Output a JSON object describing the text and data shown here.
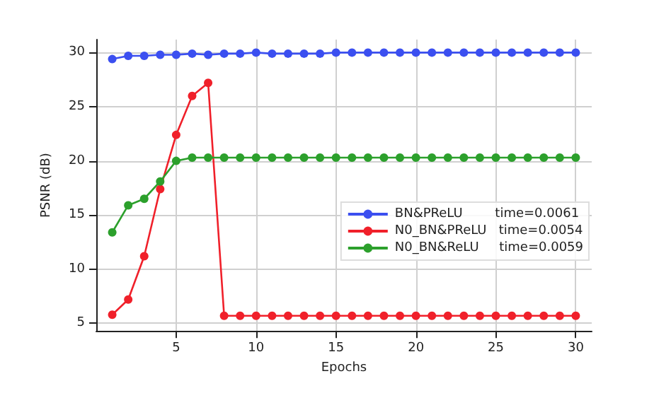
{
  "chart_data": {
    "type": "line",
    "xlabel": "Epochs",
    "ylabel": "PSNR (dB)",
    "x": [
      1,
      2,
      3,
      4,
      5,
      6,
      7,
      8,
      9,
      10,
      11,
      12,
      13,
      14,
      15,
      16,
      17,
      18,
      19,
      20,
      21,
      22,
      23,
      24,
      25,
      26,
      27,
      28,
      29,
      30
    ],
    "series": [
      {
        "name": "BN&PReLU        time=0.0061",
        "color": "#3b4ff0",
        "values": [
          29.4,
          29.7,
          29.7,
          29.8,
          29.8,
          29.9,
          29.8,
          29.9,
          29.9,
          30,
          29.9,
          29.9,
          29.9,
          29.9,
          30,
          30,
          30,
          30,
          30,
          30,
          30,
          30,
          30,
          30,
          30,
          30,
          30,
          30,
          30,
          30
        ]
      },
      {
        "name": "N0_BN&PReLU   time=0.0054",
        "color": "#f0202a",
        "values": [
          5.8,
          7.2,
          11.2,
          17.4,
          22.4,
          26.0,
          27.2,
          5.7,
          5.7,
          5.7,
          5.7,
          5.7,
          5.7,
          5.7,
          5.7,
          5.7,
          5.7,
          5.7,
          5.7,
          5.7,
          5.7,
          5.7,
          5.7,
          5.7,
          5.7,
          5.7,
          5.7,
          5.7,
          5.7,
          5.7
        ]
      },
      {
        "name": "N0_BN&ReLU     time=0.0059",
        "color": "#2ca02c",
        "values": [
          13.4,
          15.9,
          16.5,
          18.1,
          20,
          20.3,
          20.3,
          20.3,
          20.3,
          20.3,
          20.3,
          20.3,
          20.3,
          20.3,
          20.3,
          20.3,
          20.3,
          20.3,
          20.3,
          20.3,
          20.3,
          20.3,
          20.3,
          20.3,
          20.3,
          20.3,
          20.3,
          20.3,
          20.3,
          20.3
        ]
      }
    ],
    "xlim": [
      0,
      31
    ],
    "ylim": [
      4.3,
      31.2
    ],
    "xticks": [
      5,
      10,
      15,
      20,
      25,
      30
    ],
    "yticks": [
      5,
      10,
      15,
      20,
      25,
      30
    ],
    "grid": true,
    "legend": "right",
    "marker": "circle",
    "line_style": "solid"
  }
}
